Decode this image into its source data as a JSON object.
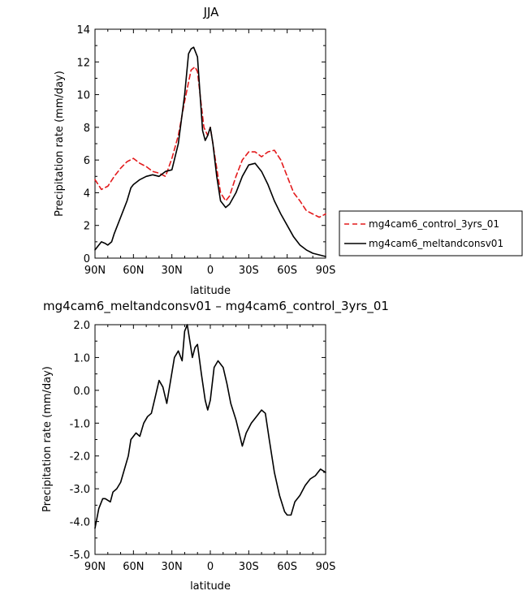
{
  "chart_data": [
    {
      "type": "line",
      "title": "JJA",
      "xlabel": "latitude",
      "ylabel": "Precipitation rate (mm/day)",
      "xlim": [
        90,
        -90
      ],
      "ylim": [
        0,
        14
      ],
      "xticks": [
        90,
        60,
        30,
        0,
        -30,
        -60,
        -90
      ],
      "xtick_labels": [
        "90N",
        "60N",
        "30N",
        "0",
        "30S",
        "60S",
        "90S"
      ],
      "yticks": [
        0,
        2,
        4,
        6,
        8,
        10,
        12,
        14
      ],
      "ytick_labels": [
        "0",
        "2",
        "4",
        "6",
        "8",
        "10",
        "12",
        "14"
      ],
      "legend_position": "right",
      "series": [
        {
          "name": "mg4cam6_control_3yrs_01",
          "color": "#e31a1c",
          "dash": "dashed",
          "x": [
            90,
            85,
            80,
            75,
            70,
            65,
            60,
            55,
            50,
            45,
            40,
            35,
            30,
            25,
            20,
            15,
            12,
            10,
            8,
            5,
            2,
            0,
            -2,
            -5,
            -8,
            -12,
            -15,
            -20,
            -25,
            -30,
            -35,
            -40,
            -45,
            -50,
            -55,
            -60,
            -65,
            -70,
            -75,
            -80,
            -85,
            -90
          ],
          "y": [
            4.8,
            4.2,
            4.4,
            5.0,
            5.5,
            5.9,
            6.1,
            5.8,
            5.6,
            5.3,
            5.2,
            5.0,
            6.1,
            7.5,
            9.6,
            11.5,
            11.7,
            11.4,
            10.0,
            8.0,
            7.5,
            8.0,
            7.0,
            5.5,
            4.0,
            3.5,
            3.8,
            5.0,
            6.0,
            6.5,
            6.5,
            6.2,
            6.5,
            6.6,
            6.0,
            5.0,
            4.0,
            3.5,
            2.9,
            2.7,
            2.5,
            2.7
          ]
        },
        {
          "name": "mg4cam6_meltandconsv01",
          "color": "#000000",
          "dash": "solid",
          "x": [
            90,
            87,
            85,
            82,
            80,
            77,
            75,
            70,
            65,
            62,
            60,
            55,
            50,
            45,
            40,
            35,
            30,
            25,
            20,
            17,
            15,
            13,
            10,
            8,
            6,
            4,
            2,
            0,
            -2,
            -5,
            -8,
            -12,
            -15,
            -20,
            -25,
            -30,
            -35,
            -40,
            -45,
            -50,
            -55,
            -60,
            -65,
            -70,
            -75,
            -80,
            -85,
            -90
          ],
          "y": [
            0.5,
            0.8,
            1.0,
            0.9,
            0.8,
            1.0,
            1.5,
            2.5,
            3.5,
            4.3,
            4.5,
            4.8,
            5.0,
            5.1,
            5.0,
            5.3,
            5.4,
            7.0,
            10.0,
            12.5,
            12.8,
            12.9,
            12.3,
            10.0,
            7.8,
            7.2,
            7.5,
            8.0,
            7.0,
            5.0,
            3.5,
            3.1,
            3.3,
            4.0,
            5.0,
            5.7,
            5.8,
            5.3,
            4.5,
            3.5,
            2.7,
            2.0,
            1.3,
            0.8,
            0.5,
            0.3,
            0.2,
            0.1
          ]
        }
      ]
    },
    {
      "type": "line",
      "title": "mg4cam6_meltandconsv01 – mg4cam6_control_3yrs_01",
      "xlabel": "latitude",
      "ylabel": "Precipitation rate (mm/day)",
      "xlim": [
        90,
        -90
      ],
      "ylim": [
        -5,
        2
      ],
      "xticks": [
        90,
        60,
        30,
        0,
        -30,
        -60,
        -90
      ],
      "xtick_labels": [
        "90N",
        "60N",
        "30N",
        "0",
        "30S",
        "60S",
        "90S"
      ],
      "yticks": [
        -5,
        -4,
        -3,
        -2,
        -1,
        0,
        1,
        2
      ],
      "ytick_labels": [
        "-5.0",
        "-4.0",
        "-3.0",
        "-2.0",
        "-1.0",
        "0.0",
        "1.0",
        "2.0"
      ],
      "series": [
        {
          "color": "#000000",
          "dash": "solid",
          "x": [
            90,
            87,
            84,
            82,
            78,
            76,
            73,
            70,
            67,
            64,
            62,
            58,
            55,
            52,
            49,
            46,
            43,
            40,
            37,
            34,
            31,
            28,
            25,
            22,
            20,
            18,
            16,
            14,
            12,
            10,
            7,
            4,
            2,
            0,
            -3,
            -6,
            -10,
            -13,
            -16,
            -20,
            -25,
            -28,
            -32,
            -36,
            -40,
            -43,
            -46,
            -50,
            -54,
            -58,
            -60,
            -63,
            -66,
            -70,
            -74,
            -78,
            -82,
            -86,
            -90
          ],
          "y": [
            -4.2,
            -3.6,
            -3.3,
            -3.3,
            -3.4,
            -3.1,
            -3.0,
            -2.8,
            -2.4,
            -2.0,
            -1.5,
            -1.3,
            -1.4,
            -1.0,
            -0.8,
            -0.7,
            -0.2,
            0.3,
            0.1,
            -0.4,
            0.3,
            1.0,
            1.2,
            0.9,
            1.8,
            2.0,
            1.5,
            1.0,
            1.3,
            1.4,
            0.5,
            -0.3,
            -0.6,
            -0.3,
            0.7,
            0.9,
            0.7,
            0.2,
            -0.4,
            -0.9,
            -1.7,
            -1.3,
            -1.0,
            -0.8,
            -0.6,
            -0.7,
            -1.5,
            -2.5,
            -3.2,
            -3.7,
            -3.8,
            -3.8,
            -3.4,
            -3.2,
            -2.9,
            -2.7,
            -2.6,
            -2.4,
            -2.5
          ]
        }
      ]
    }
  ]
}
